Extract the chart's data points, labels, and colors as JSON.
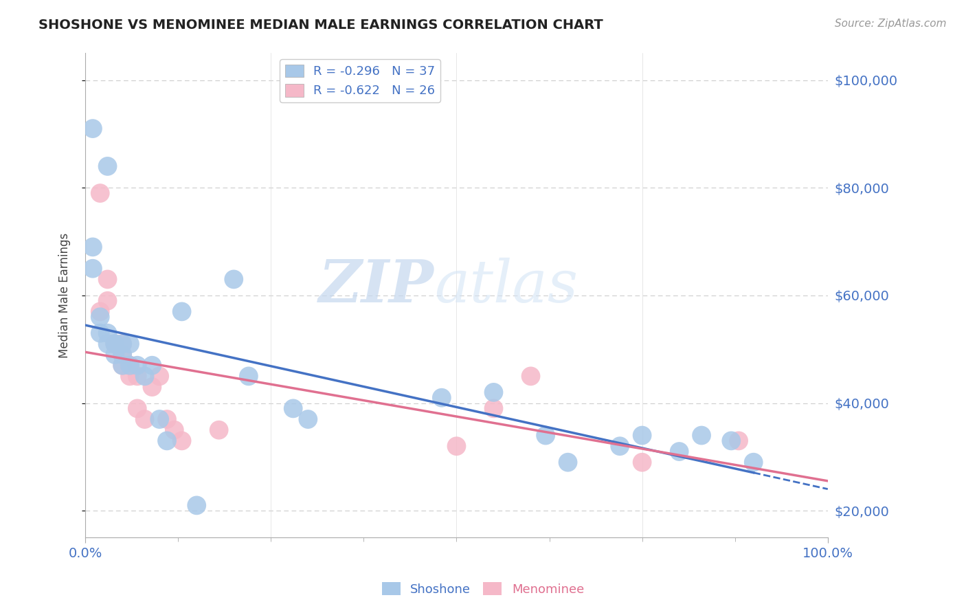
{
  "title": "SHOSHONE VS MENOMINEE MEDIAN MALE EARNINGS CORRELATION CHART",
  "source": "Source: ZipAtlas.com",
  "ylabel": "Median Male Earnings",
  "shoshone_R": "-0.296",
  "shoshone_N": "37",
  "menominee_R": "-0.622",
  "menominee_N": "26",
  "shoshone_color": "#a8c8e8",
  "menominee_color": "#f5b8c8",
  "shoshone_line_color": "#4472c4",
  "menominee_line_color": "#e07090",
  "shoshone_scatter_x": [
    1,
    3,
    1,
    1,
    2,
    2,
    3,
    3,
    4,
    4,
    4,
    5,
    5,
    5,
    6,
    6,
    7,
    8,
    9,
    10,
    11,
    13,
    15,
    20,
    22,
    28,
    30,
    48,
    55,
    62,
    65,
    72,
    75,
    80,
    83,
    87,
    90
  ],
  "shoshone_scatter_y": [
    91000,
    84000,
    69000,
    65000,
    56000,
    53000,
    53000,
    51000,
    51000,
    49000,
    51000,
    49000,
    47000,
    51000,
    47000,
    51000,
    47000,
    45000,
    47000,
    37000,
    33000,
    57000,
    21000,
    63000,
    45000,
    39000,
    37000,
    41000,
    42000,
    34000,
    29000,
    32000,
    34000,
    31000,
    34000,
    33000,
    29000
  ],
  "menominee_scatter_x": [
    2,
    2,
    3,
    3,
    4,
    4,
    5,
    5,
    5,
    6,
    6,
    6,
    7,
    7,
    8,
    9,
    10,
    11,
    12,
    13,
    18,
    50,
    55,
    60,
    75,
    88
  ],
  "menominee_scatter_y": [
    79000,
    57000,
    63000,
    59000,
    51000,
    51000,
    49000,
    47000,
    51000,
    47000,
    45000,
    47000,
    45000,
    39000,
    37000,
    43000,
    45000,
    37000,
    35000,
    33000,
    35000,
    32000,
    39000,
    45000,
    29000,
    33000
  ],
  "background_color": "#ffffff",
  "grid_color": "#cccccc",
  "watermark_zip": "ZIP",
  "watermark_atlas": "atlas",
  "xlim": [
    0,
    100
  ],
  "ylim": [
    15000,
    105000
  ],
  "ytick_values": [
    20000,
    40000,
    60000,
    80000,
    100000
  ],
  "ytick_labels": [
    "$20,000",
    "$40,000",
    "$60,000",
    "$80,000",
    "$100,000"
  ],
  "shoshone_label": "Shoshone",
  "menominee_label": "Menominee"
}
